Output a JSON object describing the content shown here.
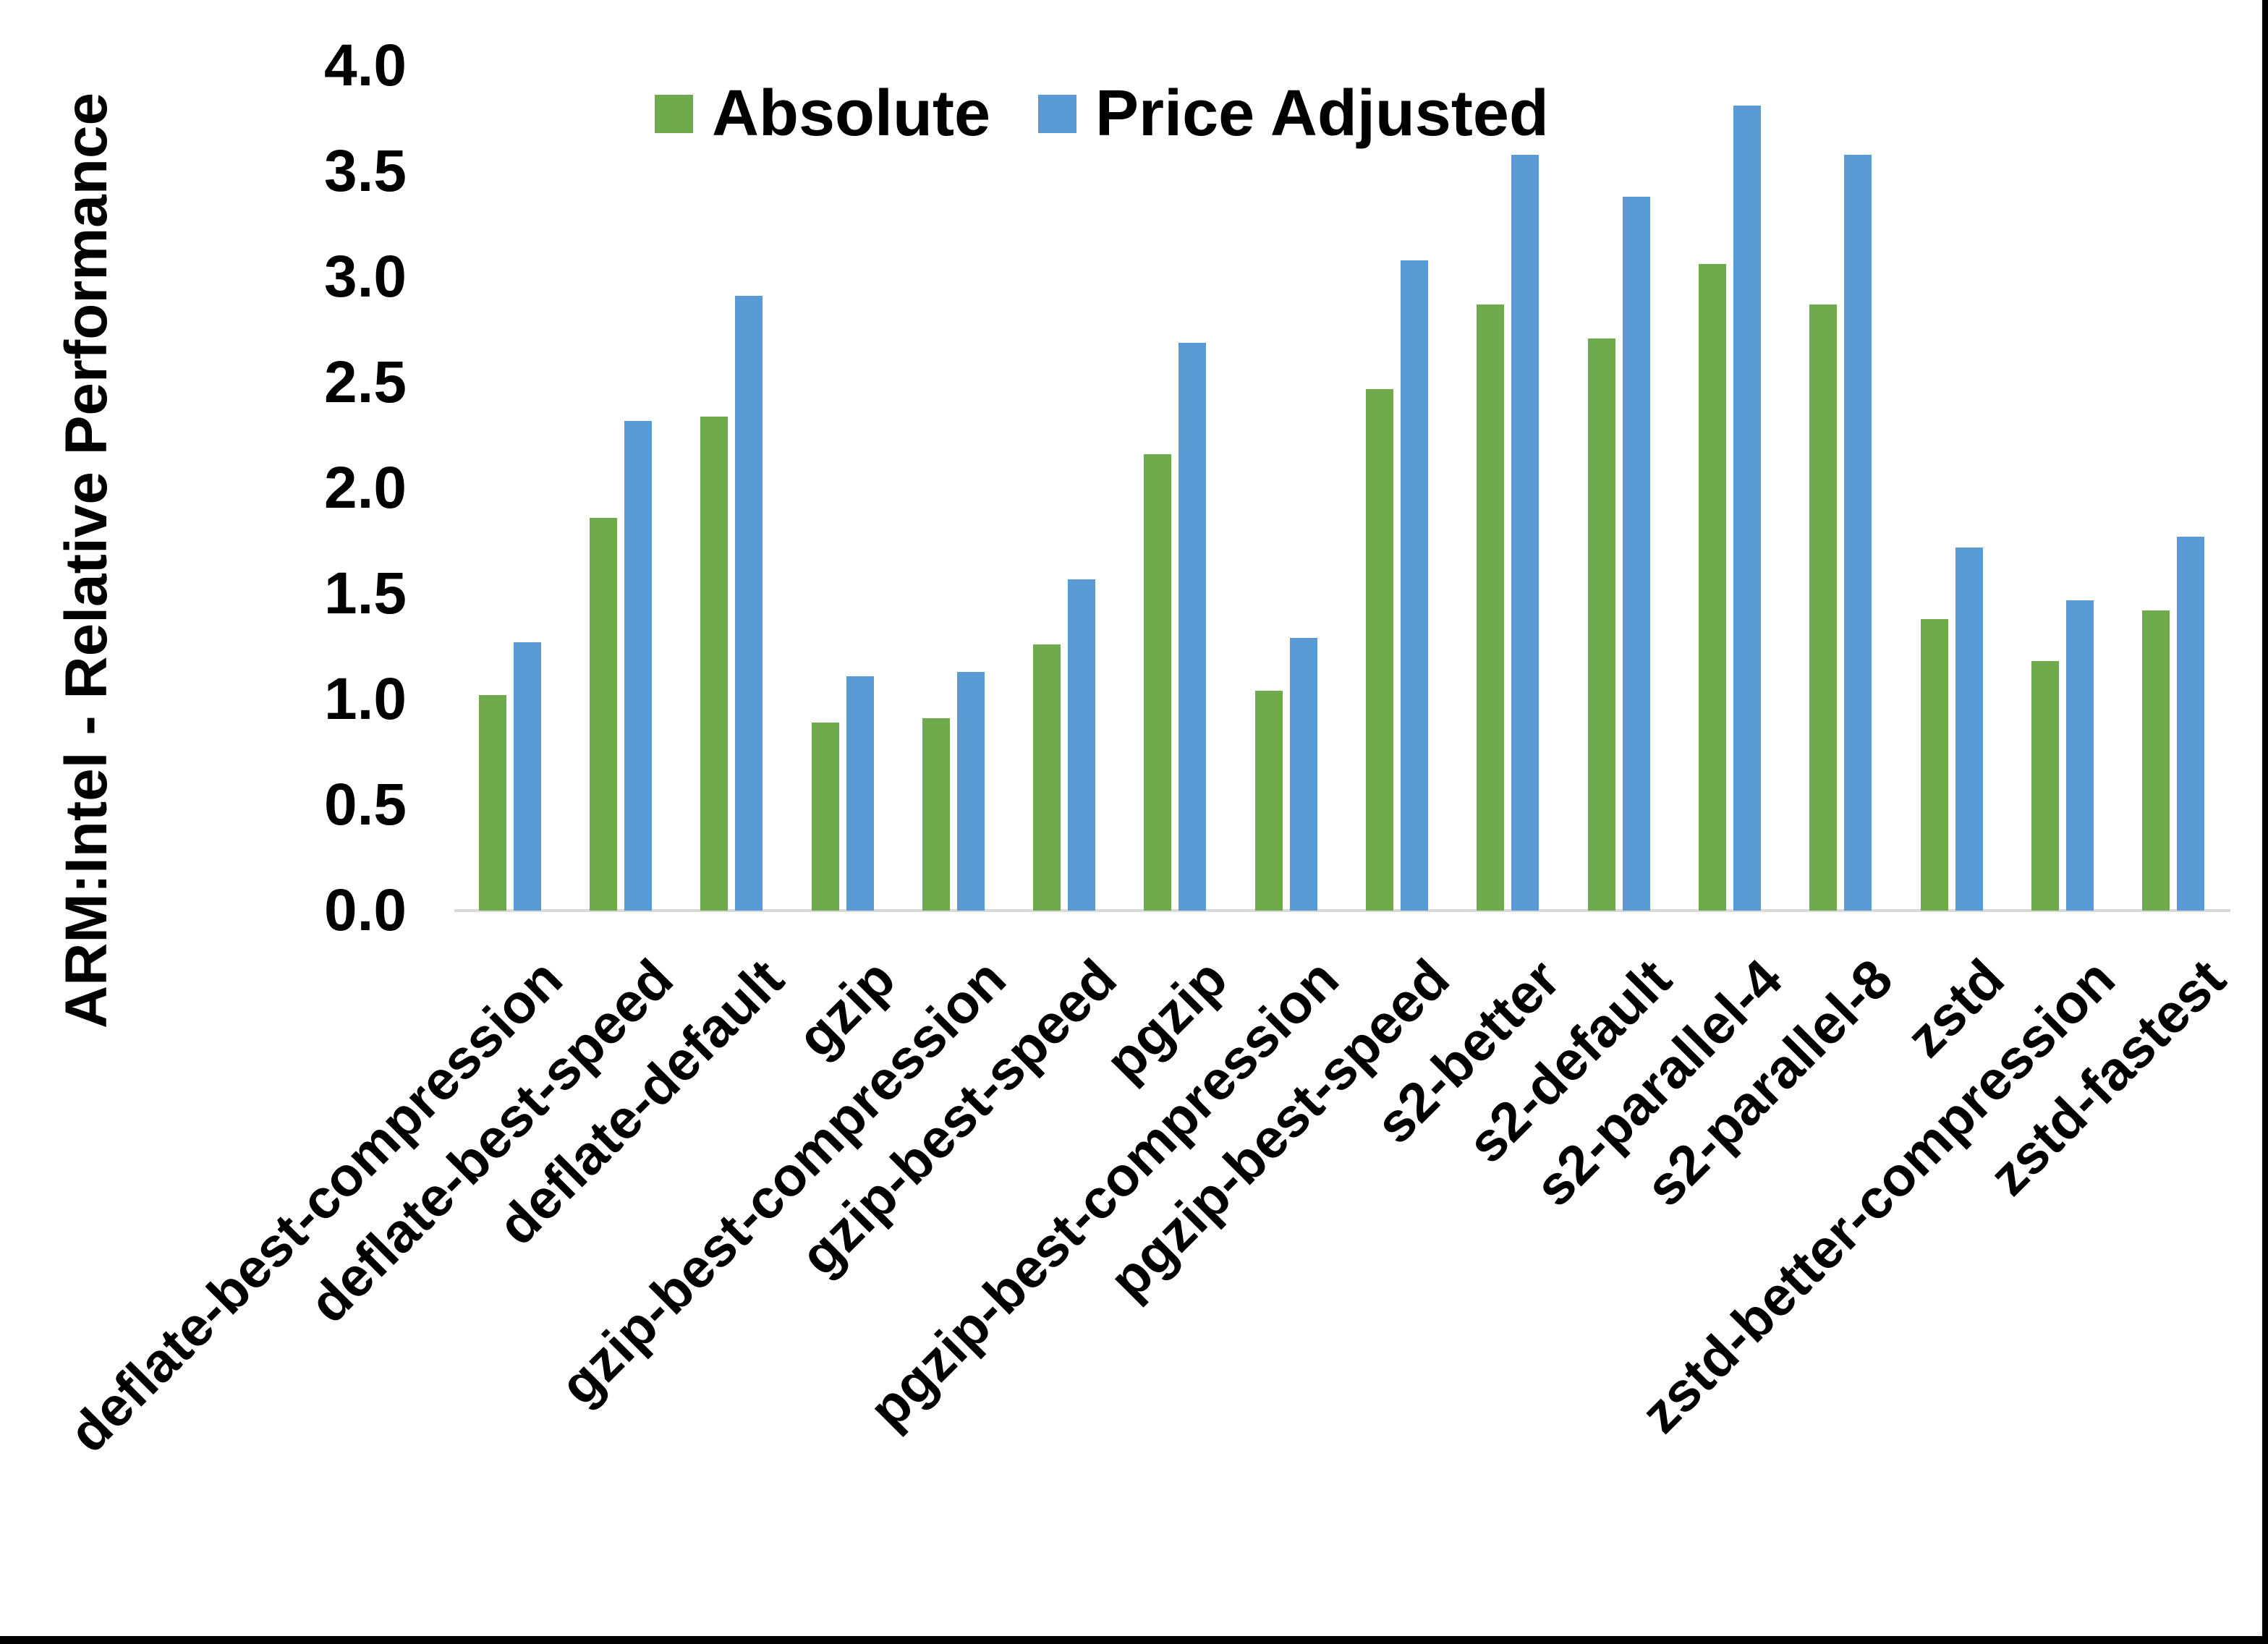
{
  "figure": {
    "y_axis_title": "ARM:Intel - Relative Performance"
  },
  "legend": {
    "items": [
      {
        "label": "Absolute",
        "color": "#6FAB4C"
      },
      {
        "label": "Price Adjusted",
        "color": "#5B9BD5"
      }
    ]
  },
  "chart_data": {
    "type": "bar",
    "title": "",
    "xlabel": "",
    "ylabel": "ARM:Intel - Relative Performance",
    "ylim": [
      0.0,
      4.0
    ],
    "ytick_labels": [
      "0.0",
      "0.5",
      "1.0",
      "1.5",
      "2.0",
      "2.5",
      "3.0",
      "3.5",
      "4.0"
    ],
    "grid": false,
    "legend_position": "top",
    "categories": [
      "deflate-best-compression",
      "deflate-best-speed",
      "deflate-default",
      "gzip",
      "gzip-best-compression",
      "gzip-best-speed",
      "pgzip",
      "pgzip-best-compression",
      "pgzip-best-speed",
      "s2-better",
      "s2-default",
      "s2-parallel-4",
      "s2-parallel-8",
      "zstd",
      "zstd-better-compression",
      "zstd-fastest"
    ],
    "series": [
      {
        "name": "Absolute",
        "color": "#6FAB4C",
        "values": [
          1.02,
          1.86,
          2.34,
          0.89,
          0.91,
          1.26,
          2.16,
          1.04,
          2.47,
          2.87,
          2.71,
          3.06,
          2.87,
          1.38,
          1.18,
          1.42
        ]
      },
      {
        "name": "Price Adjusted",
        "color": "#5B9BD5",
        "values": [
          1.27,
          2.32,
          2.91,
          1.11,
          1.13,
          1.57,
          2.69,
          1.29,
          3.08,
          3.58,
          3.38,
          3.81,
          3.58,
          1.72,
          1.47,
          1.77
        ]
      }
    ]
  },
  "colors": {
    "background": "#FFFFFF",
    "axis_line": "#D9D9D9",
    "frame": "#000000",
    "text": "#000000"
  }
}
